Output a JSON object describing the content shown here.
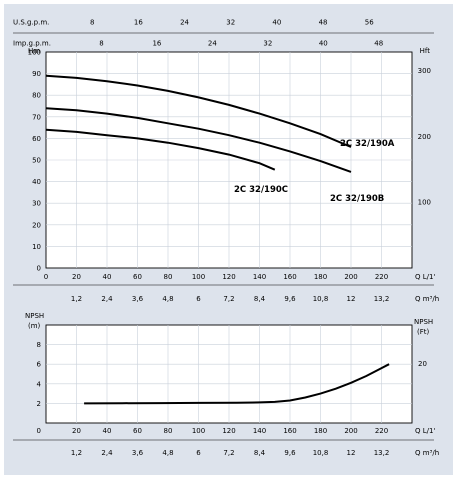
{
  "chart_data": [
    {
      "type": "line",
      "title": "",
      "xlabel": "Q L/1'",
      "x2label": "Q m³/h",
      "ylabel": "Hm",
      "y2label": "Hft",
      "top_axis_labels": [
        "U.S.g.p.m.",
        "Imp.g.p.m."
      ],
      "top_axis1_ticks": [
        "8",
        "16",
        "24",
        "32",
        "40",
        "48",
        "56"
      ],
      "top_axis2_ticks": [
        "8",
        "16",
        "24",
        "32",
        "40",
        "48"
      ],
      "xlim": [
        0,
        240
      ],
      "ylim": [
        0,
        100
      ],
      "x_ticks": [
        0,
        20,
        40,
        60,
        80,
        100,
        120,
        140,
        160,
        180,
        200,
        220
      ],
      "x2_ticks": [
        "1,2",
        "2,4",
        "3,6",
        "4,8",
        "6",
        "7,2",
        "8,4",
        "9,6",
        "10,8",
        "12",
        "13,2"
      ],
      "y_ticks": [
        0,
        10,
        20,
        30,
        40,
        50,
        60,
        70,
        80,
        90,
        100
      ],
      "y2_ticks": [
        "100",
        "200",
        "300"
      ],
      "grid": true,
      "series": [
        {
          "name": "2C 32/190A",
          "x": [
            0,
            20,
            40,
            60,
            80,
            100,
            120,
            140,
            160,
            180,
            200
          ],
          "y": [
            89,
            88,
            86.5,
            84.5,
            82,
            79,
            75.5,
            71.5,
            67,
            62,
            56
          ]
        },
        {
          "name": "2C 32/190B",
          "x": [
            0,
            20,
            40,
            60,
            80,
            100,
            120,
            140,
            160,
            180,
            200
          ],
          "y": [
            74,
            73,
            71.5,
            69.5,
            67,
            64.5,
            61.5,
            58,
            54,
            49.5,
            44.5
          ]
        },
        {
          "name": "2C 32/190C",
          "x": [
            0,
            20,
            40,
            60,
            80,
            100,
            120,
            140,
            150
          ],
          "y": [
            64,
            63,
            61.5,
            60,
            58,
            55.5,
            52.5,
            48.5,
            45.5
          ]
        }
      ]
    },
    {
      "type": "line",
      "title": "",
      "xlabel": "Q L/1'",
      "x2label": "Q m³/h",
      "ylabel": "NPSH (m)",
      "y2label": "NPSH (Ft)",
      "xlim": [
        0,
        240
      ],
      "ylim": [
        0,
        10
      ],
      "x_ticks": [
        0,
        20,
        40,
        60,
        80,
        100,
        120,
        140,
        160,
        180,
        200,
        220
      ],
      "x2_ticks": [
        "1,2",
        "2,4",
        "3,6",
        "4,8",
        "6",
        "7,2",
        "8,4",
        "9,6",
        "10,8",
        "12",
        "13,2"
      ],
      "y_ticks": [
        0,
        2,
        4,
        6,
        8
      ],
      "y2_ticks": [
        "20"
      ],
      "grid": true,
      "series": [
        {
          "name": "",
          "x": [
            25,
            50,
            75,
            100,
            125,
            140,
            150,
            160,
            170,
            180,
            190,
            200,
            210,
            225
          ],
          "y": [
            2.0,
            2.02,
            2.03,
            2.05,
            2.07,
            2.1,
            2.15,
            2.3,
            2.6,
            3.0,
            3.5,
            4.1,
            4.8,
            6.0
          ]
        }
      ]
    }
  ]
}
